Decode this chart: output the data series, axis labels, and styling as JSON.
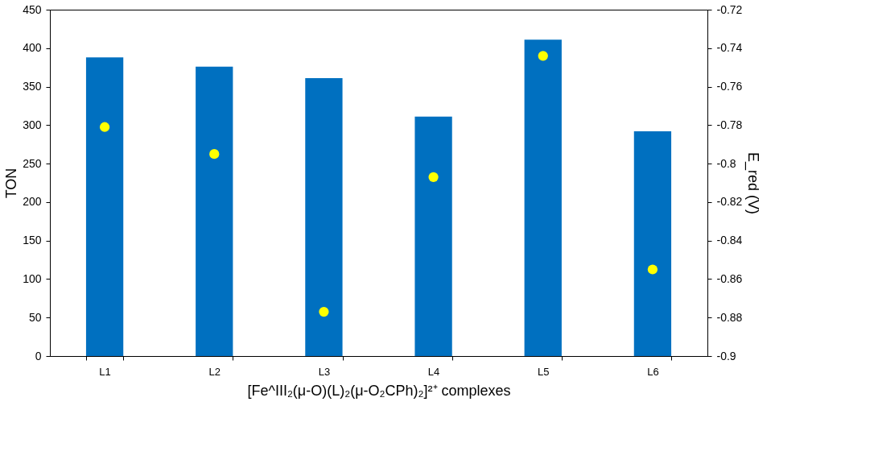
{
  "chart_data": {
    "type": "bar",
    "categories": [
      "L1",
      "L2",
      "L3",
      "L4",
      "L5",
      "L6"
    ],
    "xlabel": "[Fe^III₂(μ-O)(L)₂(μ-O₂CPh)₂]²⁺  complexes",
    "ylabel": "TON",
    "y2label": "E_red (V)",
    "series": [
      {
        "color": "#0070c0",
        "values": [
          388,
          376,
          361,
          311,
          411,
          292
        ]
      },
      {
        "type": "scatter",
        "axis": "y2",
        "color": "#ffff00",
        "marker": "circle",
        "values": [
          -0.781,
          -0.795,
          -0.877,
          -0.807,
          -0.744,
          -0.855
        ]
      }
    ],
    "ylim": [
      0,
      450
    ],
    "yticks": [
      0,
      50,
      100,
      150,
      200,
      250,
      300,
      350,
      400,
      450
    ],
    "y2lim": [
      -0.9,
      -0.72
    ],
    "y2ticks": [
      -0.9,
      -0.88,
      -0.86,
      -0.84,
      -0.82,
      -0.8,
      -0.78,
      -0.76,
      -0.74,
      -0.72
    ],
    "grid": false
  }
}
